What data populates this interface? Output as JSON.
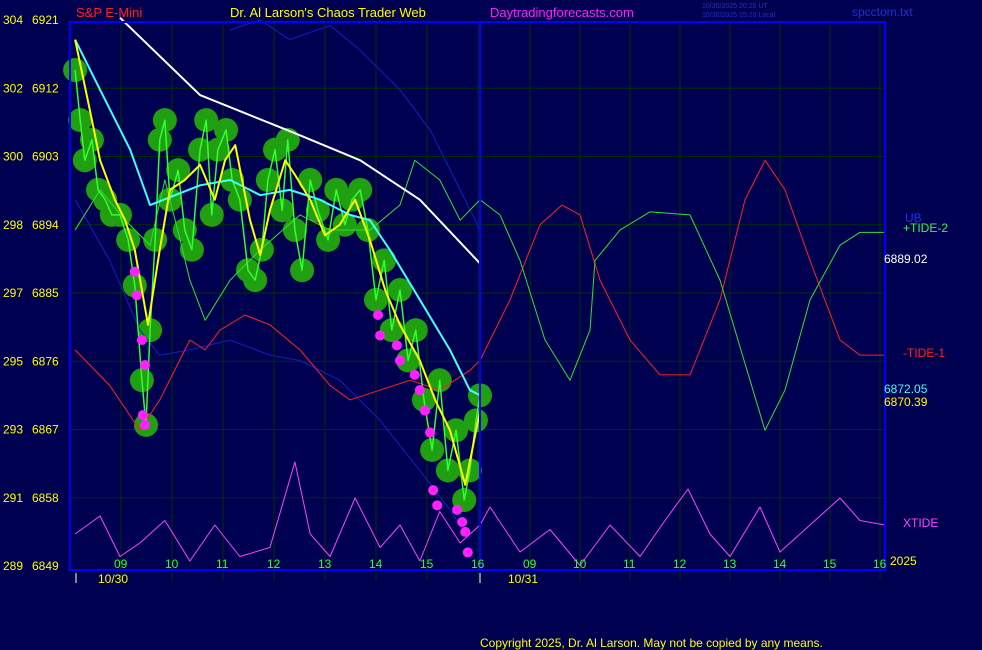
{
  "header": {
    "symbol": "S&P E-Mini",
    "title": "Dr. Al Larson's Chaos Trader Web",
    "site": "Daytradingforecasts.com",
    "time_ut": "10/30/2025 20:20 UT",
    "time_local": "10/30/2025 15:20 Local",
    "file": "spcctom.txt"
  },
  "footer": {
    "copyright": "Copyright 2025, Dr. Al Larson. May not be copied by any means."
  },
  "colors": {
    "background": "#000050",
    "border": "#0000ff",
    "grid": "#003000",
    "price": "#30ff30",
    "bubbles": "#20a010",
    "lows": "#ff20ff",
    "yellow": "#ffff00",
    "cyan": "#40ffff",
    "white": "#ffffff",
    "tide1": "#ff2020",
    "tide2": "#30e030",
    "bands": "#1020c0",
    "xtide": "#ff40ff"
  },
  "chart_data": {
    "type": "line",
    "title": "Dr. Al Larson's Chaos Trader Web",
    "y_labels": [
      {
        "left": "304",
        "price": "6921"
      },
      {
        "left": "302",
        "price": "6912"
      },
      {
        "left": "300",
        "price": "6903"
      },
      {
        "left": "298",
        "price": "6894"
      },
      {
        "left": "297",
        "price": "6885"
      },
      {
        "left": "295",
        "price": "6876"
      },
      {
        "left": "293",
        "price": "6867"
      },
      {
        "left": "291",
        "price": "6858"
      },
      {
        "left": "289",
        "price": "6849"
      }
    ],
    "ylim": [
      6849,
      6921
    ],
    "days": [
      {
        "date": "10/30",
        "hours": [
          "09",
          "10",
          "11",
          "12",
          "13",
          "14",
          "15",
          "16"
        ]
      },
      {
        "date": "10/31",
        "hours": [
          "09",
          "10",
          "11",
          "12",
          "13",
          "14",
          "15",
          "16"
        ]
      }
    ],
    "grid": true,
    "labels": {
      "ub": "UB",
      "tide2": "+TIDE-2",
      "white_value": "6889.02",
      "tide1": "-TIDE-1",
      "cyan_value": "6872.05",
      "yellow_value": "6870.39",
      "xtide": "XTIDE",
      "year": "2025"
    },
    "series": {
      "price": {
        "d30": [
          [
            8.1,
            6914.4
          ],
          [
            8.2,
            6907.8
          ],
          [
            8.29,
            6902.5
          ],
          [
            8.43,
            6905.2
          ],
          [
            8.55,
            6898.6
          ],
          [
            8.69,
            6897.3
          ],
          [
            8.82,
            6895.3
          ],
          [
            8.98,
            6895.3
          ],
          [
            9.14,
            6892
          ],
          [
            9.27,
            6886
          ],
          [
            9.41,
            6873.5
          ],
          [
            9.49,
            6867.6
          ],
          [
            9.57,
            6880.1
          ],
          [
            9.67,
            6892
          ],
          [
            9.76,
            6905.2
          ],
          [
            9.86,
            6907.8
          ],
          [
            9.96,
            6897.3
          ],
          [
            10.12,
            6901.2
          ],
          [
            10.25,
            6893.3
          ],
          [
            10.39,
            6890.7
          ],
          [
            10.55,
            6903.9
          ],
          [
            10.67,
            6907.8
          ],
          [
            10.78,
            6895.3
          ],
          [
            10.9,
            6903.9
          ],
          [
            11.06,
            6906.5
          ],
          [
            11.18,
            6899.9
          ],
          [
            11.33,
            6897.3
          ],
          [
            11.49,
            6888
          ],
          [
            11.63,
            6886.7
          ],
          [
            11.76,
            6890.7
          ],
          [
            11.88,
            6899.9
          ],
          [
            12.02,
            6903.9
          ],
          [
            12.16,
            6895.9
          ],
          [
            12.27,
            6905.2
          ],
          [
            12.41,
            6893.3
          ],
          [
            12.55,
            6888
          ],
          [
            12.71,
            6899.9
          ],
          [
            12.86,
            6895.9
          ],
          [
            13.06,
            6892
          ],
          [
            13.22,
            6898.6
          ],
          [
            13.39,
            6894
          ],
          [
            13.53,
            6897.3
          ],
          [
            13.69,
            6898.6
          ],
          [
            13.84,
            6893.3
          ],
          [
            14.0,
            6884.1
          ],
          [
            14.16,
            6889.3
          ],
          [
            14.31,
            6880.1
          ],
          [
            14.47,
            6885.4
          ],
          [
            14.63,
            6876.1
          ],
          [
            14.78,
            6880.1
          ],
          [
            14.94,
            6870.9
          ],
          [
            15.1,
            6864.3
          ],
          [
            15.25,
            6873.5
          ],
          [
            15.41,
            6861.6
          ],
          [
            15.57,
            6866.9
          ],
          [
            15.73,
            6857.7
          ],
          [
            15.84,
            6861.6
          ],
          [
            15.96,
            6868.2
          ],
          [
            16.04,
            6871.5
          ]
        ],
        "d31": []
      },
      "yellow": {
        "d30": [
          [
            8.1,
            6918.4
          ],
          [
            8.39,
            6909.1
          ],
          [
            8.59,
            6902.5
          ],
          [
            8.88,
            6897.3
          ],
          [
            9.08,
            6894.6
          ],
          [
            9.27,
            6890.7
          ],
          [
            9.53,
            6880.8
          ],
          [
            9.76,
            6890.7
          ],
          [
            9.96,
            6898.6
          ],
          [
            10.25,
            6899.9
          ],
          [
            10.55,
            6901.9
          ],
          [
            10.84,
            6897.3
          ],
          [
            11.04,
            6902.5
          ],
          [
            11.24,
            6904.5
          ],
          [
            11.53,
            6894.6
          ],
          [
            11.73,
            6890
          ],
          [
            11.92,
            6895.9
          ],
          [
            12.22,
            6902.5
          ],
          [
            12.41,
            6900.6
          ],
          [
            12.71,
            6897.3
          ],
          [
            13.0,
            6892.6
          ],
          [
            13.29,
            6894
          ],
          [
            13.59,
            6897.3
          ],
          [
            13.88,
            6892
          ],
          [
            14.18,
            6885.4
          ],
          [
            14.47,
            6880.8
          ],
          [
            14.86,
            6876.1
          ],
          [
            15.16,
            6870.9
          ],
          [
            15.45,
            6866.9
          ],
          [
            15.75,
            6859.7
          ],
          [
            16.04,
            6869.5
          ]
        ],
        "d31": []
      },
      "cyan": {
        "d30": [
          [
            8.1,
            6918.4
          ],
          [
            8.59,
            6911.8
          ],
          [
            9.18,
            6903.9
          ],
          [
            9.57,
            6896.6
          ],
          [
            10.06,
            6897.9
          ],
          [
            10.55,
            6899.2
          ],
          [
            11.14,
            6899.9
          ],
          [
            11.73,
            6897.9
          ],
          [
            12.31,
            6898.6
          ],
          [
            12.9,
            6897.3
          ],
          [
            13.49,
            6895.3
          ],
          [
            13.88,
            6894.6
          ],
          [
            14.27,
            6890.7
          ],
          [
            14.86,
            6884.1
          ],
          [
            15.45,
            6877.5
          ],
          [
            15.84,
            6872.2
          ],
          [
            16.04,
            6871.5
          ]
        ],
        "d31": []
      },
      "white": {
        "d30": [
          [
            8.98,
            6921.3
          ],
          [
            10.55,
            6911.1
          ],
          [
            12.51,
            6905.8
          ],
          [
            13.69,
            6902.5
          ],
          [
            14.86,
            6897.3
          ],
          [
            16.04,
            6888.9
          ]
        ],
        "d31": []
      },
      "upper_band": {
        "d30": [
          [
            11.14,
            6919.7
          ],
          [
            11.73,
            6921
          ],
          [
            12.31,
            6918.4
          ],
          [
            13.1,
            6920.3
          ],
          [
            13.69,
            6917
          ],
          [
            14.47,
            6911.8
          ],
          [
            15.06,
            6906.5
          ],
          [
            15.65,
            6898.6
          ],
          [
            16.04,
            6893.3
          ]
        ],
        "d31": []
      },
      "lower_band": {
        "d30": [
          [
            8.1,
            6897.3
          ],
          [
            8.78,
            6889.3
          ],
          [
            9.37,
            6880.1
          ],
          [
            9.76,
            6876.8
          ],
          [
            10.35,
            6877.5
          ],
          [
            11.14,
            6878.8
          ],
          [
            11.92,
            6876.8
          ],
          [
            12.51,
            6876.1
          ],
          [
            13.29,
            6873.5
          ],
          [
            14.08,
            6868.2
          ],
          [
            14.86,
            6861.6
          ],
          [
            15.45,
            6856.4
          ],
          [
            15.84,
            6852.4
          ]
        ],
        "d31": []
      },
      "tide1": {
        "d30": [
          [
            8.1,
            6877.5
          ],
          [
            8.78,
            6872.8
          ],
          [
            9.37,
            6866.9
          ],
          [
            9.76,
            6870.9
          ],
          [
            10.35,
            6878.8
          ],
          [
            10.65,
            6877.5
          ],
          [
            10.94,
            6880.1
          ],
          [
            11.43,
            6882.1
          ],
          [
            11.92,
            6880.8
          ],
          [
            12.51,
            6877.5
          ],
          [
            13.1,
            6872.8
          ],
          [
            13.49,
            6870.9
          ],
          [
            14.08,
            6872.2
          ],
          [
            14.67,
            6873.5
          ],
          [
            15.25,
            6872.2
          ],
          [
            15.84,
            6874.8
          ],
          [
            16.04,
            6876.1
          ]
        ],
        "d31": [
          [
            8.6,
            6884.1
          ],
          [
            9.2,
            6894
          ],
          [
            9.64,
            6896.6
          ],
          [
            10.0,
            6895.3
          ],
          [
            10.4,
            6886.7
          ],
          [
            11.0,
            6878.8
          ],
          [
            11.6,
            6874.2
          ],
          [
            12.2,
            6874.2
          ],
          [
            12.8,
            6884.1
          ],
          [
            13.3,
            6897.3
          ],
          [
            13.7,
            6902.5
          ],
          [
            14.1,
            6898.6
          ],
          [
            14.6,
            6889.3
          ],
          [
            15.2,
            6878.8
          ],
          [
            15.6,
            6876.8
          ],
          [
            16.1,
            6876.8
          ]
        ]
      },
      "tide2": {
        "d30": [
          [
            8.1,
            6893.3
          ],
          [
            8.59,
            6898.6
          ],
          [
            9.08,
            6894.6
          ],
          [
            9.57,
            6891.3
          ],
          [
            9.86,
            6899.9
          ],
          [
            10.16,
            6892
          ],
          [
            10.35,
            6886.7
          ],
          [
            10.65,
            6881.4
          ],
          [
            11.14,
            6886.7
          ],
          [
            11.73,
            6890.7
          ],
          [
            12.51,
            6895.3
          ],
          [
            13.1,
            6893.3
          ],
          [
            13.88,
            6893.3
          ],
          [
            14.47,
            6896.6
          ],
          [
            14.76,
            6902.5
          ],
          [
            15.25,
            6899.9
          ],
          [
            15.65,
            6894.6
          ],
          [
            16.04,
            6897.3
          ]
        ],
        "d31": [
          [
            8.4,
            6895.3
          ],
          [
            8.8,
            6889.3
          ],
          [
            9.3,
            6878.8
          ],
          [
            9.8,
            6873.5
          ],
          [
            10.2,
            6880.1
          ],
          [
            10.3,
            6889.3
          ],
          [
            10.8,
            6893.3
          ],
          [
            11.4,
            6895.7
          ],
          [
            12.2,
            6895.3
          ],
          [
            12.8,
            6886.7
          ],
          [
            13.4,
            6873.5
          ],
          [
            13.7,
            6866.9
          ],
          [
            14.1,
            6872.2
          ],
          [
            14.6,
            6884.1
          ],
          [
            15.2,
            6891.3
          ],
          [
            15.6,
            6893
          ],
          [
            16.1,
            6893
          ]
        ]
      },
      "xtide": {
        "d30": [
          [
            8.1,
            40
          ],
          [
            8.59,
            60
          ],
          [
            8.98,
            15
          ],
          [
            9.37,
            30
          ],
          [
            9.86,
            55
          ],
          [
            10.35,
            10
          ],
          [
            10.84,
            50
          ],
          [
            11.33,
            15
          ],
          [
            11.92,
            25
          ],
          [
            12.41,
            120
          ],
          [
            12.71,
            40
          ],
          [
            13.1,
            15
          ],
          [
            13.59,
            80
          ],
          [
            14.08,
            25
          ],
          [
            14.47,
            50
          ],
          [
            14.86,
            10
          ],
          [
            15.25,
            65
          ],
          [
            15.65,
            30
          ],
          [
            16.04,
            50
          ]
        ],
        "d31": [
          [
            8.2,
            70
          ],
          [
            8.8,
            20
          ],
          [
            9.4,
            45
          ],
          [
            10.0,
            5
          ],
          [
            10.6,
            50
          ],
          [
            11.2,
            15
          ],
          [
            11.7,
            55
          ],
          [
            12.16,
            90
          ],
          [
            12.6,
            40
          ],
          [
            13.0,
            15
          ],
          [
            13.6,
            70
          ],
          [
            14.0,
            20
          ],
          [
            14.6,
            50
          ],
          [
            15.2,
            80
          ],
          [
            15.6,
            55
          ],
          [
            16.1,
            50
          ]
        ]
      }
    },
    "lows": [
      [
        9.27,
        6887.8
      ],
      [
        9.31,
        6884.7
      ],
      [
        9.41,
        6878.8
      ],
      [
        9.47,
        6875.5
      ],
      [
        9.43,
        6868.9
      ],
      [
        9.47,
        6867.6
      ],
      [
        14.04,
        6882.1
      ],
      [
        14.08,
        6879.4
      ],
      [
        14.41,
        6878.1
      ],
      [
        14.47,
        6876.1
      ],
      [
        14.76,
        6874.2
      ],
      [
        14.86,
        6872.2
      ],
      [
        14.96,
        6869.5
      ],
      [
        15.06,
        6866.6
      ],
      [
        15.12,
        6859
      ],
      [
        15.2,
        6857
      ],
      [
        15.59,
        6856.4
      ],
      [
        15.69,
        6854.8
      ],
      [
        15.75,
        6853.5
      ],
      [
        15.8,
        6850.8
      ]
    ]
  }
}
